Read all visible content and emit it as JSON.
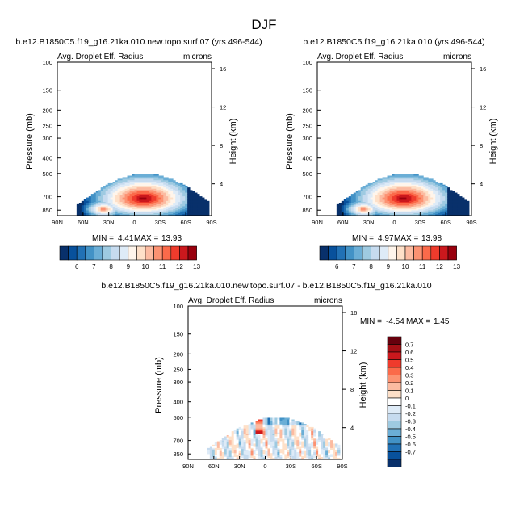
{
  "figure": {
    "title": "DJF",
    "colors": {
      "zonal_scale": [
        "#08306b",
        "#08519c",
        "#2171b5",
        "#4292c6",
        "#6baed6",
        "#9ecae1",
        "#c6dbef",
        "#deebf7",
        "#fff5eb",
        "#fee0c8",
        "#fcbba1",
        "#fc9272",
        "#fb6a4a",
        "#ef3b2c",
        "#cb181d",
        "#99000d"
      ],
      "diff_scale": [
        "#08306b",
        "#08519c",
        "#2171b5",
        "#4292c6",
        "#6baed6",
        "#9ecae1",
        "#c6dbef",
        "#deebf7",
        "#ffffff",
        "#fee0c8",
        "#fcbba1",
        "#fc9272",
        "#fb6a4a",
        "#ef3b2c",
        "#cb181d",
        "#a50f15",
        "#67000d"
      ]
    }
  },
  "chart_data": [
    {
      "type": "heatmap",
      "case_title": "b.e12.B1850C5.f19_g16.21ka.010.new.topo.surf.07 (yrs 496-544)",
      "variable": "Avg. Droplet Eff. Radius",
      "units": "microns",
      "xlabel": "",
      "ylabel": "Pressure (mb)",
      "right_axis_label": "Height (km)",
      "x_ticks": [
        "90N",
        "60N",
        "30N",
        "0",
        "30S",
        "60S",
        "90S"
      ],
      "y_ticks": [
        "100",
        "150",
        "200",
        "250",
        "300",
        "400",
        "500",
        "700",
        "850"
      ],
      "height_ticks": [
        "4",
        "8",
        "12",
        "16"
      ],
      "stats": {
        "min_label": "MIN =",
        "min": "4.41",
        "max_label": "MAX =",
        "max": "13.93"
      },
      "colorbar_labels": [
        "6",
        "7",
        "8",
        "9",
        "10",
        "11",
        "12",
        "13"
      ],
      "field_peak": 13.93,
      "field_min": 4.41
    },
    {
      "type": "heatmap",
      "case_title": "b.e12.B1850C5.f19_g16.21ka.010 (yrs 496-544)",
      "variable": "Avg. Droplet Eff. Radius",
      "units": "microns",
      "xlabel": "",
      "ylabel": "Pressure (mb)",
      "right_axis_label": "Height (km)",
      "x_ticks": [
        "90N",
        "60N",
        "30N",
        "0",
        "30S",
        "60S",
        "90S"
      ],
      "y_ticks": [
        "100",
        "150",
        "200",
        "250",
        "300",
        "400",
        "500",
        "700",
        "850"
      ],
      "height_ticks": [
        "4",
        "8",
        "12",
        "16"
      ],
      "stats": {
        "min_label": "MIN =",
        "min": "4.97",
        "max_label": "MAX =",
        "max": "13.98"
      },
      "colorbar_labels": [
        "6",
        "7",
        "8",
        "9",
        "10",
        "11",
        "12",
        "13"
      ],
      "field_peak": 13.98,
      "field_min": 4.97
    },
    {
      "type": "heatmap",
      "case_title": "b.e12.B1850C5.f19_g16.21ka.010.new.topo.surf.07 - b.e12.B1850C5.f19_g16.21ka.010",
      "variable": "Avg. Droplet Eff. Radius",
      "units": "microns",
      "xlabel": "",
      "ylabel": "Pressure (mb)",
      "right_axis_label": "Height (km)",
      "x_ticks": [
        "90N",
        "60N",
        "30N",
        "0",
        "30S",
        "60S",
        "90S"
      ],
      "y_ticks": [
        "100",
        "150",
        "200",
        "250",
        "300",
        "400",
        "500",
        "700",
        "850"
      ],
      "height_ticks": [
        "4",
        "8",
        "12",
        "16"
      ],
      "stats": {
        "min_label": "MIN =",
        "min": "-4.54",
        "max_label": "MAX =",
        "max": "1.45"
      },
      "colorbar_labels": [
        "0.7",
        "0.6",
        "0.5",
        "0.4",
        "0.3",
        "0.2",
        "0.1",
        "0",
        "-0.1",
        "-0.2",
        "-0.3",
        "-0.4",
        "-0.5",
        "-0.6",
        "-0.7"
      ]
    }
  ]
}
